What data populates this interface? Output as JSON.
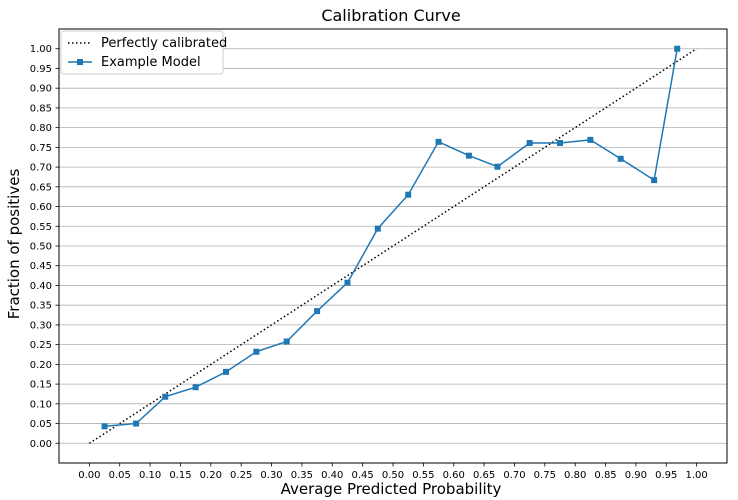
{
  "chart_data": {
    "type": "line",
    "title": "Calibration Curve",
    "xlabel": "Average Predicted Probability",
    "ylabel": "Fraction of positives",
    "xlim": [
      -0.05,
      1.05
    ],
    "ylim": [
      -0.05,
      1.05
    ],
    "x_ticks": [
      "0.00",
      "0.05",
      "0.10",
      "0.15",
      "0.20",
      "0.25",
      "0.30",
      "0.35",
      "0.40",
      "0.45",
      "0.50",
      "0.55",
      "0.60",
      "0.65",
      "0.70",
      "0.75",
      "0.80",
      "0.85",
      "0.90",
      "0.95",
      "1.00"
    ],
    "y_ticks": [
      "0.00",
      "0.05",
      "0.10",
      "0.15",
      "0.20",
      "0.25",
      "0.30",
      "0.35",
      "0.40",
      "0.45",
      "0.50",
      "0.55",
      "0.60",
      "0.65",
      "0.70",
      "0.75",
      "0.80",
      "0.85",
      "0.90",
      "0.95",
      "1.00"
    ],
    "grid": "horizontal",
    "legend_position": "top-left",
    "series": [
      {
        "name": "Perfectly calibrated",
        "style": "dotted",
        "color": "#000000",
        "x": [
          0.0,
          1.0
        ],
        "y": [
          0.0,
          1.0
        ]
      },
      {
        "name": "Example Model",
        "style": "solid-square-markers",
        "color": "#1f77b4",
        "x": [
          0.025,
          0.077,
          0.125,
          0.175,
          0.225,
          0.275,
          0.325,
          0.375,
          0.425,
          0.475,
          0.525,
          0.575,
          0.625,
          0.672,
          0.725,
          0.775,
          0.825,
          0.875,
          0.93,
          0.968
        ],
        "y": [
          0.043,
          0.05,
          0.118,
          0.142,
          0.181,
          0.232,
          0.258,
          0.335,
          0.407,
          0.544,
          0.63,
          0.764,
          0.729,
          0.701,
          0.761,
          0.761,
          0.769,
          0.721,
          0.667,
          1.0
        ]
      }
    ]
  }
}
